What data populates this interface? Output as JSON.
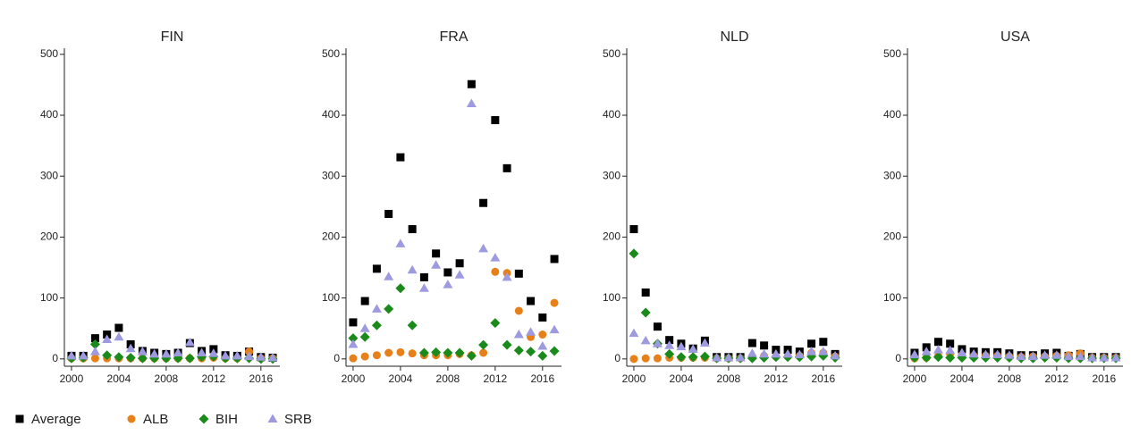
{
  "chart_data": [
    {
      "type": "scatter",
      "title": "FIN",
      "x": [
        2000,
        2001,
        2002,
        2003,
        2004,
        2005,
        2006,
        2007,
        2008,
        2009,
        2010,
        2011,
        2012,
        2013,
        2014,
        2015,
        2016,
        2017
      ],
      "xlim": [
        1999.4,
        2017.6
      ],
      "ylim": [
        -12,
        510
      ],
      "xticks": [
        2000,
        2004,
        2008,
        2012,
        2016
      ],
      "yticks": [
        0,
        100,
        200,
        300,
        400,
        500
      ],
      "series": [
        {
          "name": "Average",
          "color": "#000000",
          "marker": "square",
          "values": [
            5,
            5,
            34,
            40,
            51,
            24,
            13,
            10,
            8,
            10,
            26,
            13,
            16,
            6,
            5,
            12,
            3,
            2
          ]
        },
        {
          "name": "ALB",
          "color": "#e8801a",
          "marker": "circle",
          "values": [
            1,
            1,
            1,
            1,
            1,
            1,
            1,
            1,
            1,
            1,
            1,
            1,
            2,
            1,
            1,
            12,
            1,
            1
          ]
        },
        {
          "name": "BIH",
          "color": "#1a8a1a",
          "marker": "diamond",
          "values": [
            1,
            2,
            24,
            6,
            3,
            2,
            1,
            1,
            1,
            1,
            1,
            3,
            4,
            1,
            1,
            1,
            0,
            0
          ]
        },
        {
          "name": "SRB",
          "color": "#9e9ae0",
          "marker": "triangle",
          "values": [
            5,
            5,
            12,
            32,
            36,
            17,
            12,
            8,
            8,
            10,
            27,
            10,
            9,
            5,
            5,
            4,
            3,
            2
          ]
        }
      ]
    },
    {
      "type": "scatter",
      "title": "FRA",
      "x": [
        2000,
        2001,
        2002,
        2003,
        2004,
        2005,
        2006,
        2007,
        2008,
        2009,
        2010,
        2011,
        2012,
        2013,
        2014,
        2015,
        2016,
        2017
      ],
      "xlim": [
        1999.4,
        2017.6
      ],
      "ylim": [
        -12,
        510
      ],
      "xticks": [
        2000,
        2004,
        2008,
        2012,
        2016
      ],
      "yticks": [
        0,
        100,
        200,
        300,
        400,
        500
      ],
      "series": [
        {
          "name": "Average",
          "color": "#000000",
          "marker": "square",
          "values": [
            60,
            95,
            148,
            238,
            331,
            213,
            134,
            173,
            142,
            157,
            451,
            256,
            392,
            313,
            140,
            95,
            68,
            164
          ]
        },
        {
          "name": "ALB",
          "color": "#e8801a",
          "marker": "circle",
          "values": [
            1,
            4,
            6,
            10,
            11,
            9,
            6,
            6,
            6,
            8,
            6,
            10,
            143,
            141,
            79,
            36,
            40,
            92
          ]
        },
        {
          "name": "BIH",
          "color": "#1a8a1a",
          "marker": "diamond",
          "values": [
            34,
            36,
            55,
            82,
            116,
            55,
            10,
            11,
            10,
            10,
            5,
            23,
            59,
            23,
            14,
            12,
            5,
            13
          ]
        },
        {
          "name": "SRB",
          "color": "#9e9ae0",
          "marker": "triangle",
          "values": [
            24,
            50,
            82,
            135,
            189,
            146,
            116,
            154,
            122,
            138,
            419,
            181,
            166,
            134,
            40,
            44,
            21,
            48
          ]
        }
      ]
    },
    {
      "type": "scatter",
      "title": "NLD",
      "x": [
        2000,
        2001,
        2002,
        2003,
        2004,
        2005,
        2006,
        2007,
        2008,
        2009,
        2010,
        2011,
        2012,
        2013,
        2014,
        2015,
        2016,
        2017
      ],
      "xlim": [
        1999.4,
        2017.6
      ],
      "ylim": [
        -12,
        510
      ],
      "xticks": [
        2000,
        2004,
        2008,
        2012,
        2016
      ],
      "yticks": [
        0,
        100,
        200,
        300,
        400,
        500
      ],
      "series": [
        {
          "name": "Average",
          "color": "#000000",
          "marker": "square",
          "values": [
            213,
            109,
            53,
            31,
            25,
            17,
            30,
            3,
            3,
            3,
            26,
            22,
            15,
            15,
            12,
            25,
            28,
            8
          ]
        },
        {
          "name": "ALB",
          "color": "#e8801a",
          "marker": "circle",
          "values": [
            0,
            1,
            1,
            2,
            2,
            2,
            2,
            1,
            1,
            1,
            3,
            5,
            4,
            4,
            5,
            10,
            10,
            4
          ]
        },
        {
          "name": "BIH",
          "color": "#1a8a1a",
          "marker": "diamond",
          "values": [
            173,
            76,
            25,
            8,
            3,
            3,
            4,
            1,
            1,
            1,
            1,
            2,
            3,
            3,
            3,
            4,
            5,
            2
          ]
        },
        {
          "name": "SRB",
          "color": "#9e9ae0",
          "marker": "triangle",
          "values": [
            42,
            30,
            25,
            22,
            20,
            16,
            26,
            2,
            2,
            2,
            9,
            8,
            8,
            8,
            7,
            12,
            12,
            5
          ]
        }
      ]
    },
    {
      "type": "scatter",
      "title": "USA",
      "x": [
        2000,
        2001,
        2002,
        2003,
        2004,
        2005,
        2006,
        2007,
        2008,
        2009,
        2010,
        2011,
        2012,
        2013,
        2014,
        2015,
        2016,
        2017
      ],
      "xlim": [
        1999.4,
        2017.6
      ],
      "ylim": [
        -12,
        510
      ],
      "xticks": [
        2000,
        2004,
        2008,
        2012,
        2016
      ],
      "yticks": [
        0,
        100,
        200,
        300,
        400,
        500
      ],
      "series": [
        {
          "name": "Average",
          "color": "#000000",
          "marker": "square",
          "values": [
            10,
            19,
            28,
            25,
            16,
            12,
            11,
            11,
            9,
            6,
            6,
            9,
            10,
            5,
            8,
            3,
            3,
            3
          ]
        },
        {
          "name": "ALB",
          "color": "#e8801a",
          "marker": "circle",
          "values": [
            1,
            2,
            5,
            8,
            6,
            5,
            5,
            5,
            4,
            3,
            4,
            4,
            5,
            6,
            9,
            2,
            2,
            2
          ]
        },
        {
          "name": "BIH",
          "color": "#1a8a1a",
          "marker": "diamond",
          "values": [
            2,
            2,
            3,
            2,
            2,
            2,
            2,
            2,
            2,
            1,
            1,
            2,
            2,
            1,
            1,
            1,
            1,
            1
          ]
        },
        {
          "name": "SRB",
          "color": "#9e9ae0",
          "marker": "triangle",
          "values": [
            7,
            12,
            15,
            14,
            10,
            8,
            7,
            7,
            6,
            4,
            4,
            6,
            6,
            4,
            4,
            2,
            2,
            2
          ]
        }
      ]
    }
  ]
}
